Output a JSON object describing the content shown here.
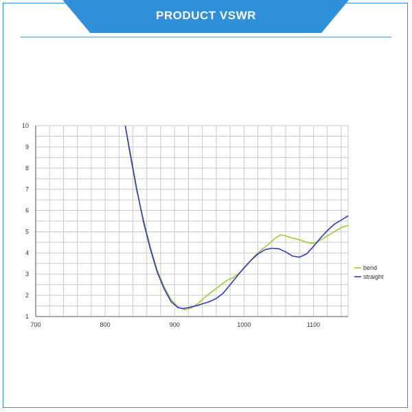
{
  "header": {
    "title": "PRODUCT  VSWR"
  },
  "colors": {
    "frame": "#2f8fd8",
    "banner": "#2f8fd8",
    "banner_text": "#ffffff",
    "grid": "#c8c8c8",
    "axis": "#555555"
  },
  "chart_data": {
    "type": "line",
    "title": "",
    "xlabel": "",
    "ylabel": "",
    "xlim": [
      700,
      1150
    ],
    "ylim": [
      1,
      10
    ],
    "x_ticks": [
      700,
      800,
      900,
      1000,
      1100
    ],
    "y_ticks": [
      1,
      2,
      3,
      4,
      5,
      6,
      7,
      8,
      9,
      10
    ],
    "grid": true,
    "legend_position": "right",
    "series": [
      {
        "name": "bend",
        "color": "#9acd32",
        "points": [
          [
            829,
            10.0
          ],
          [
            835,
            8.8
          ],
          [
            845,
            7.0
          ],
          [
            855,
            5.6
          ],
          [
            865,
            4.3
          ],
          [
            875,
            3.2
          ],
          [
            885,
            2.4
          ],
          [
            895,
            1.8
          ],
          [
            905,
            1.45
          ],
          [
            915,
            1.32
          ],
          [
            925,
            1.42
          ],
          [
            935,
            1.65
          ],
          [
            945,
            1.95
          ],
          [
            955,
            2.2
          ],
          [
            965,
            2.45
          ],
          [
            975,
            2.7
          ],
          [
            985,
            2.85
          ],
          [
            995,
            3.1
          ],
          [
            1005,
            3.45
          ],
          [
            1015,
            3.85
          ],
          [
            1025,
            4.15
          ],
          [
            1035,
            4.4
          ],
          [
            1045,
            4.7
          ],
          [
            1053,
            4.85
          ],
          [
            1060,
            4.8
          ],
          [
            1068,
            4.72
          ],
          [
            1080,
            4.62
          ],
          [
            1090,
            4.5
          ],
          [
            1100,
            4.45
          ],
          [
            1110,
            4.6
          ],
          [
            1120,
            4.8
          ],
          [
            1130,
            5.0
          ],
          [
            1140,
            5.2
          ],
          [
            1150,
            5.3
          ]
        ]
      },
      {
        "name": "straight",
        "color": "#2f35c8",
        "points": [
          [
            829,
            10.0
          ],
          [
            835,
            8.9
          ],
          [
            845,
            7.1
          ],
          [
            855,
            5.5
          ],
          [
            865,
            4.2
          ],
          [
            875,
            3.1
          ],
          [
            885,
            2.3
          ],
          [
            895,
            1.7
          ],
          [
            905,
            1.42
          ],
          [
            912,
            1.38
          ],
          [
            920,
            1.42
          ],
          [
            930,
            1.5
          ],
          [
            940,
            1.6
          ],
          [
            950,
            1.7
          ],
          [
            960,
            1.85
          ],
          [
            970,
            2.1
          ],
          [
            980,
            2.5
          ],
          [
            990,
            2.9
          ],
          [
            1000,
            3.3
          ],
          [
            1010,
            3.65
          ],
          [
            1020,
            3.95
          ],
          [
            1030,
            4.15
          ],
          [
            1040,
            4.22
          ],
          [
            1050,
            4.2
          ],
          [
            1060,
            4.05
          ],
          [
            1070,
            3.85
          ],
          [
            1080,
            3.8
          ],
          [
            1090,
            3.95
          ],
          [
            1100,
            4.3
          ],
          [
            1110,
            4.7
          ],
          [
            1120,
            5.05
          ],
          [
            1130,
            5.35
          ],
          [
            1140,
            5.55
          ],
          [
            1150,
            5.75
          ]
        ]
      }
    ]
  }
}
